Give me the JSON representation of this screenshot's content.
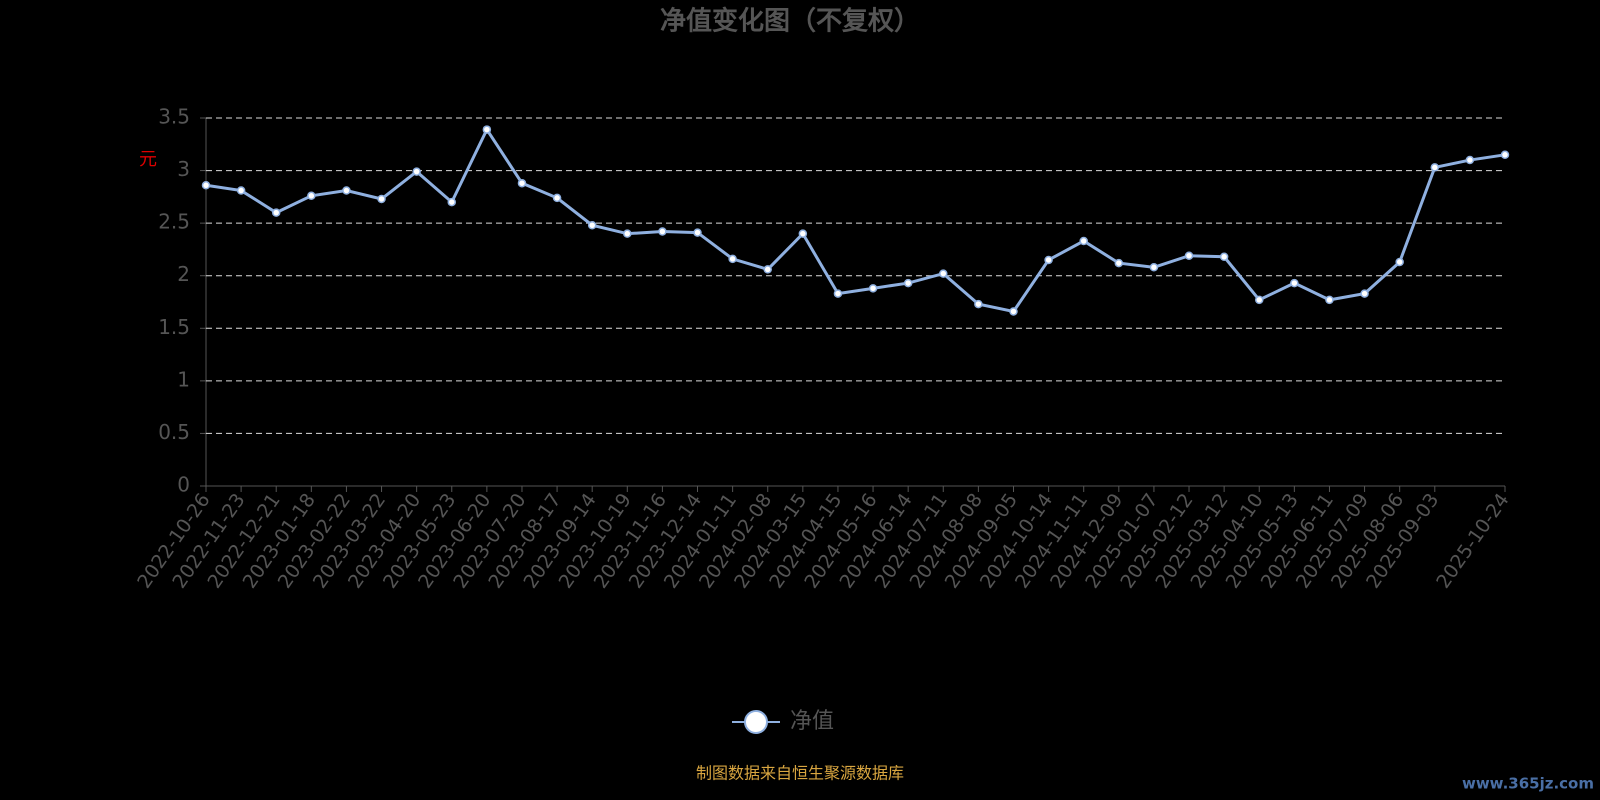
{
  "chart_data": {
    "type": "line",
    "title": "净值变化图（不复权）",
    "y_label": "元",
    "categories": [
      "2022-10-26",
      "2022-11-23",
      "2022-12-21",
      "2023-01-18",
      "2023-02-22",
      "2023-03-22",
      "2023-04-20",
      "2023-05-23",
      "2023-06-20",
      "2023-07-20",
      "2023-08-17",
      "2023-09-14",
      "2023-10-19",
      "2023-11-16",
      "2023-12-14",
      "2024-01-11",
      "2024-02-08",
      "2024-03-15",
      "2024-04-15",
      "2024-05-16",
      "2024-06-14",
      "2024-07-11",
      "2024-08-08",
      "2024-09-05",
      "2024-10-14",
      "2024-11-11",
      "2024-12-09",
      "2025-01-07",
      "2025-02-12",
      "2025-03-12",
      "2025-04-10",
      "2025-05-13",
      "2025-06-11",
      "2025-07-09",
      "2025-08-06",
      "2025-09-03",
      null,
      "2025-10-24"
    ],
    "series": [
      {
        "name": "净值",
        "color": "#8fb0e0",
        "values": [
          2.86,
          2.81,
          2.6,
          2.76,
          2.81,
          2.73,
          2.99,
          2.7,
          3.39,
          2.88,
          2.74,
          2.48,
          2.4,
          2.42,
          2.41,
          2.16,
          2.06,
          2.4,
          1.83,
          1.88,
          1.93,
          2.02,
          1.73,
          1.66,
          2.15,
          2.33,
          2.12,
          2.08,
          2.19,
          2.18,
          1.77,
          1.93,
          1.77,
          1.83,
          2.13,
          3.03,
          3.1,
          3.15
        ]
      }
    ],
    "ylim": [
      0,
      3.5
    ],
    "yticks": [
      0,
      0.5,
      1,
      1.5,
      2,
      2.5,
      3,
      3.5
    ],
    "grid": true,
    "source": "制图数据来自恒生聚源数据库",
    "watermark": "www.365jz.com"
  }
}
